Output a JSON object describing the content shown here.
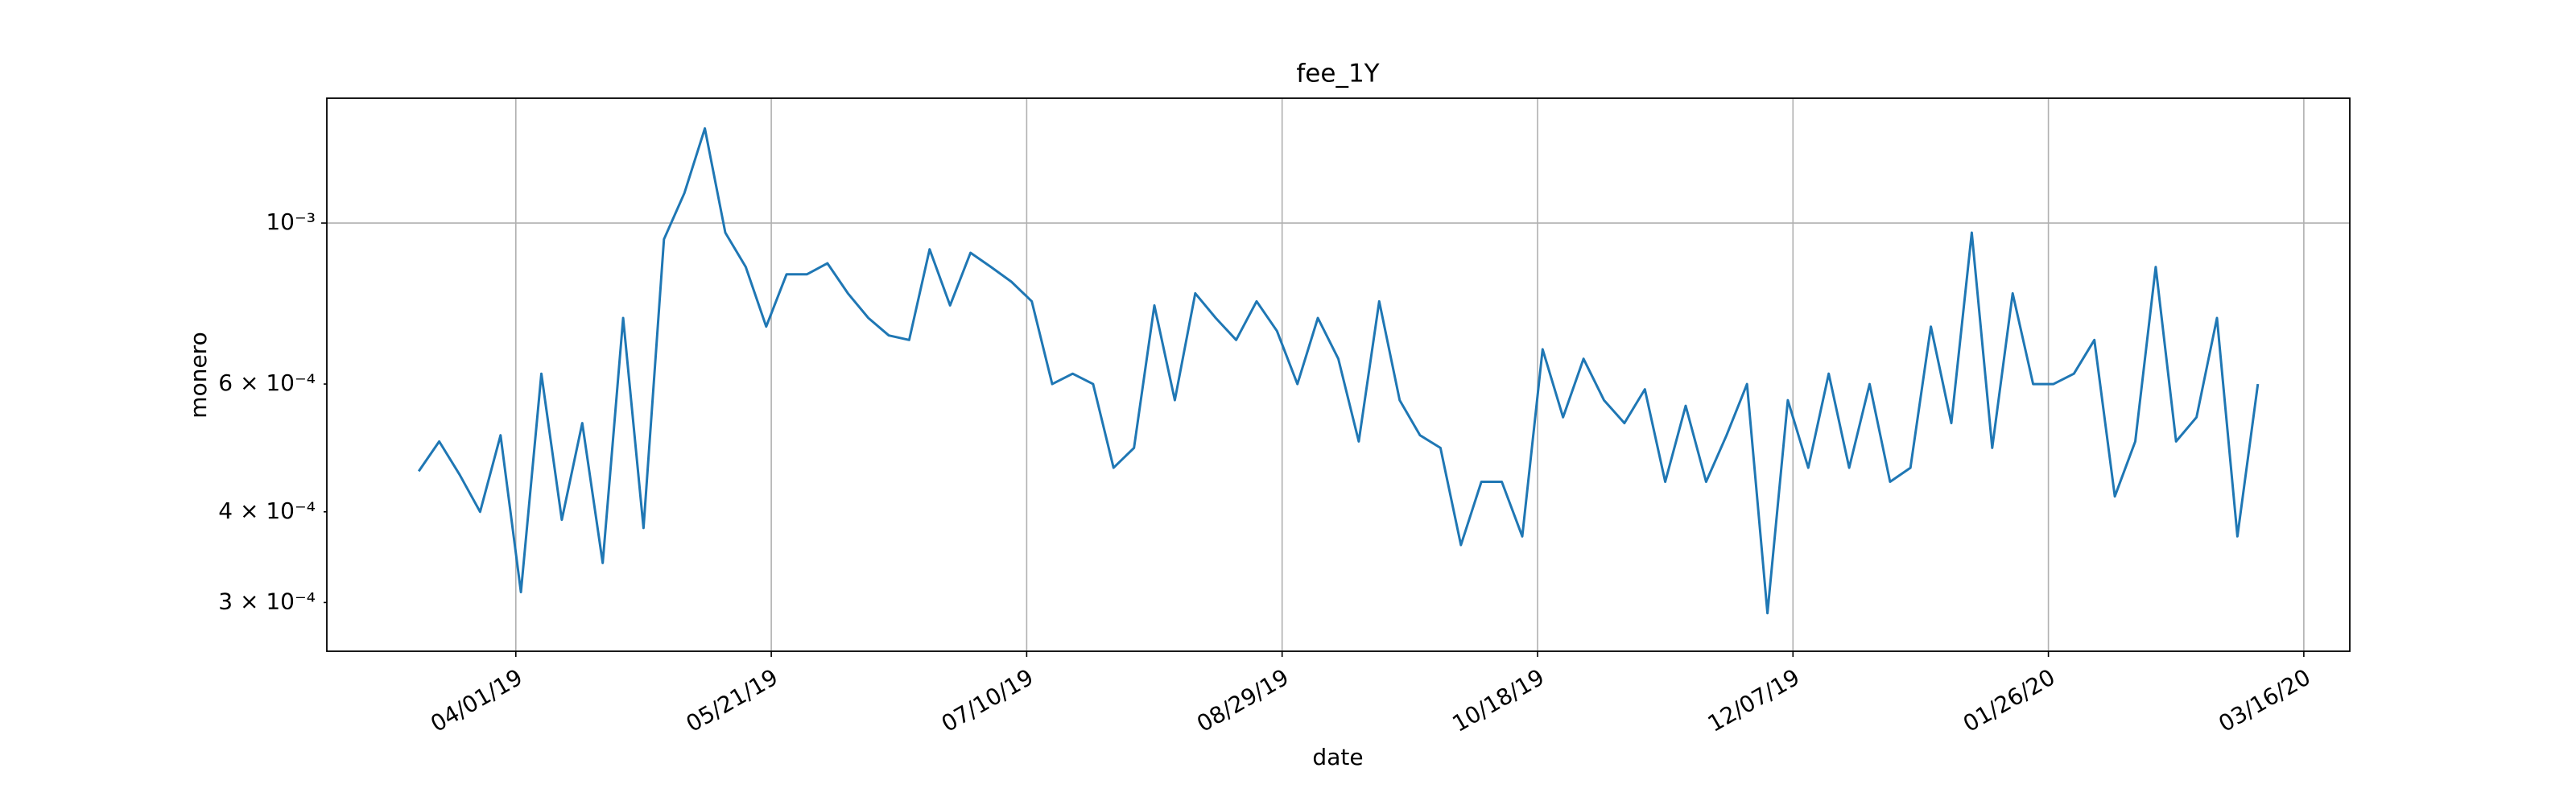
{
  "chart_data": {
    "type": "line",
    "title": "fee_1Y",
    "xlabel": "date",
    "ylabel": "monero",
    "color": "#1f77b4",
    "yscale": "log",
    "grid": true,
    "xlim": [
      "02/23/19",
      "03/25/20"
    ],
    "xticks": [
      "04/01/19",
      "05/21/19",
      "07/10/19",
      "08/29/19",
      "10/18/19",
      "12/07/19",
      "01/26/20",
      "03/16/20"
    ],
    "ylim": [
      0.000257,
      0.001486
    ],
    "yticks": [
      {
        "value": 0.001,
        "label": "10⁻³"
      }
    ],
    "yticks_minor": [
      {
        "value": 0.0003,
        "label": "3 × 10⁻⁴"
      },
      {
        "value": 0.0004,
        "label": "4 × 10⁻⁴"
      },
      {
        "value": 0.0006,
        "label": "6 × 10⁻⁴"
      }
    ],
    "x": [
      "03/13/19",
      "03/17/19",
      "03/21/19",
      "03/25/19",
      "03/29/19",
      "04/02/19",
      "04/06/19",
      "04/10/19",
      "04/14/19",
      "04/18/19",
      "04/22/19",
      "04/26/19",
      "04/30/19",
      "05/04/19",
      "05/08/19",
      "05/12/19",
      "05/16/19",
      "05/20/19",
      "05/24/19",
      "05/28/19",
      "06/01/19",
      "06/05/19",
      "06/09/19",
      "06/13/19",
      "06/17/19",
      "06/21/19",
      "06/25/19",
      "06/29/19",
      "07/03/19",
      "07/07/19",
      "07/11/19",
      "07/15/19",
      "07/19/19",
      "07/23/19",
      "07/27/19",
      "07/31/19",
      "08/04/19",
      "08/08/19",
      "08/12/19",
      "08/16/19",
      "08/20/19",
      "08/24/19",
      "08/28/19",
      "09/01/19",
      "09/05/19",
      "09/09/19",
      "09/13/19",
      "09/17/19",
      "09/21/19",
      "09/25/19",
      "09/29/19",
      "10/03/19",
      "10/07/19",
      "10/11/19",
      "10/15/19",
      "10/19/19",
      "10/23/19",
      "10/27/19",
      "10/31/19",
      "11/04/19",
      "11/08/19",
      "11/12/19",
      "11/16/19",
      "11/20/19",
      "11/24/19",
      "11/28/19",
      "12/02/19",
      "12/06/19",
      "12/10/19",
      "12/14/19",
      "12/18/19",
      "12/22/19",
      "12/26/19",
      "12/30/19",
      "01/03/20",
      "01/07/20",
      "01/11/20",
      "01/15/20",
      "01/19/20",
      "01/23/20",
      "01/27/20",
      "01/31/20",
      "02/04/20",
      "02/08/20",
      "02/12/20",
      "02/16/20",
      "02/20/20",
      "02/24/20",
      "02/28/20",
      "03/03/20",
      "03/07/20"
    ],
    "values": [
      0.000455,
      0.0005,
      0.00045,
      0.0004,
      0.00051,
      0.00031,
      0.00062,
      0.00039,
      0.00053,
      0.00034,
      0.00074,
      0.00038,
      0.00095,
      0.0011,
      0.00135,
      0.00097,
      0.00087,
      0.00072,
      0.00085,
      0.00085,
      0.00088,
      0.0008,
      0.00074,
      0.0007,
      0.00069,
      0.00092,
      0.00077,
      0.00091,
      0.00087,
      0.00083,
      0.00078,
      0.0006,
      0.00062,
      0.0006,
      0.00046,
      0.00049,
      0.00077,
      0.00057,
      0.0008,
      0.00074,
      0.00069,
      0.00078,
      0.00071,
      0.0006,
      0.00074,
      0.00065,
      0.0005,
      0.00078,
      0.00057,
      0.00051,
      0.00049,
      0.00036,
      0.00044,
      0.00044,
      0.00037,
      0.00067,
      0.00054,
      0.00065,
      0.00057,
      0.00053,
      0.00059,
      0.00044,
      0.00056,
      0.00044,
      0.00051,
      0.0006,
      0.00029,
      0.00057,
      0.00046,
      0.00062,
      0.00046,
      0.0006,
      0.00044,
      0.00046,
      0.00072,
      0.00053,
      0.00097,
      0.00049,
      0.0008,
      0.0006,
      0.0006,
      0.00062,
      0.00069,
      0.00042,
      0.0005,
      0.00087,
      0.0005,
      0.00054,
      0.00074,
      0.00037,
      0.0006
    ]
  }
}
